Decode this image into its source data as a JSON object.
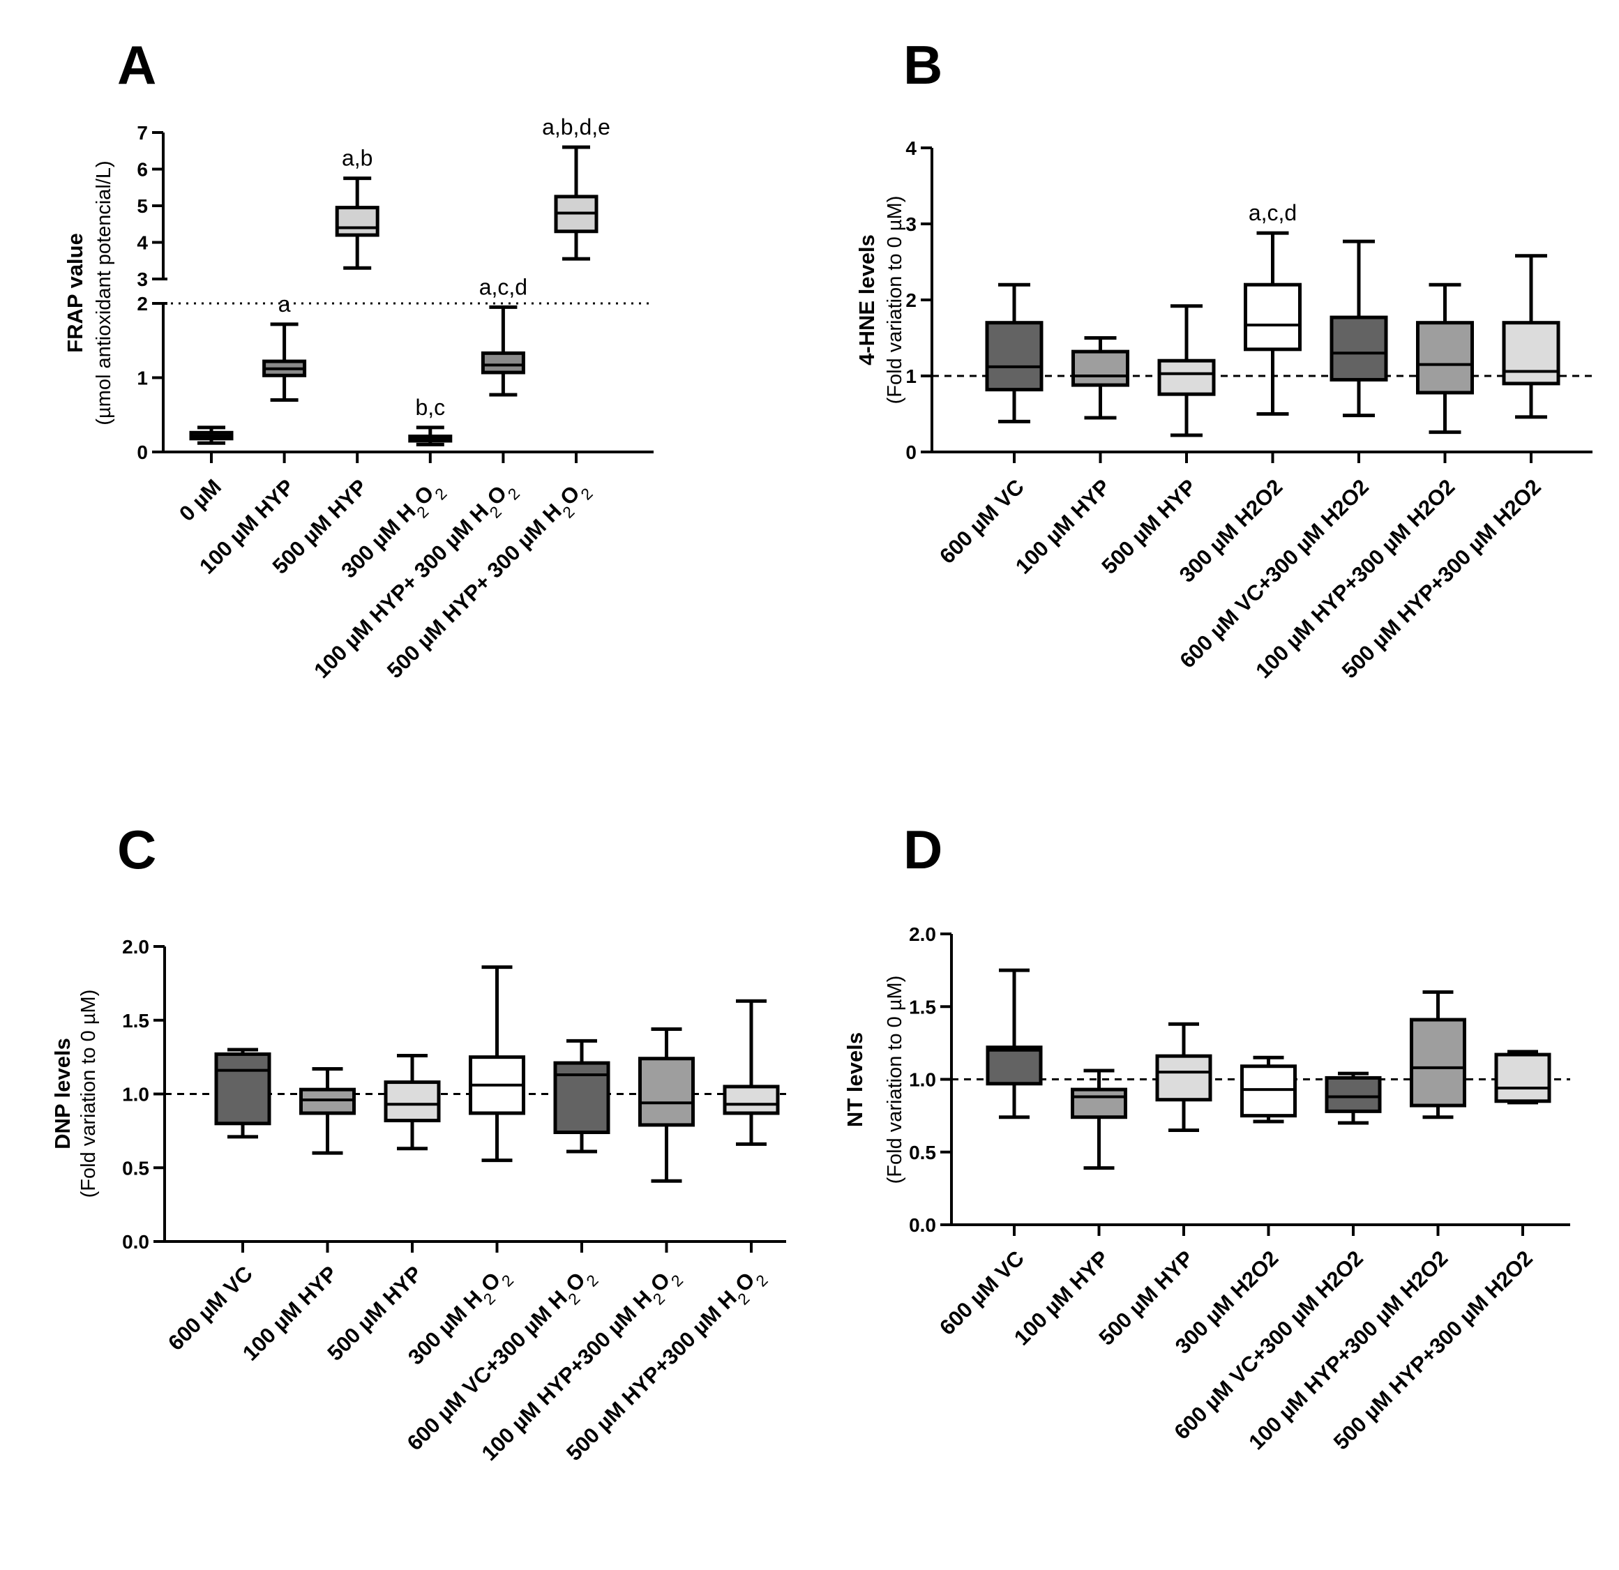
{
  "chart_data": [
    {
      "panel": "A",
      "type": "box",
      "ylabel": "FRAP value",
      "ylabel_sub": "(µmol antioxidant potencial/L)",
      "ylim": [
        0,
        7
      ],
      "axis_break": [
        2,
        3
      ],
      "yticks": [
        "0",
        "1",
        "2",
        "3",
        "4",
        "5",
        "6",
        "7"
      ],
      "reference_line": 2,
      "categories": [
        {
          "pre": "0 µM",
          "sub": "",
          "post": ""
        },
        {
          "pre": "100 µM HYP",
          "sub": "",
          "post": ""
        },
        {
          "pre": "500 µM HYP",
          "sub": "",
          "post": ""
        },
        {
          "pre": "300 µM H",
          "sub": "2",
          "post": "O",
          "sub2": "2"
        },
        {
          "pre": "100 µM HYP+ 300 µM H",
          "sub": "2",
          "post": "O",
          "sub2": "2"
        },
        {
          "pre": "500 µM HYP+ 300 µM H",
          "sub": "2",
          "post": "O",
          "sub2": "2"
        }
      ],
      "boxes": [
        {
          "min": 0.12,
          "q1": 0.18,
          "median": 0.22,
          "q3": 0.26,
          "max": 0.33,
          "fill": "#6b6b6b",
          "label": ""
        },
        {
          "min": 0.7,
          "q1": 1.03,
          "median": 1.12,
          "q3": 1.22,
          "max": 1.72,
          "fill": "#8a8a8a",
          "label": "a"
        },
        {
          "min": 3.3,
          "q1": 4.2,
          "median": 4.4,
          "q3": 4.95,
          "max": 5.75,
          "fill": "#d2d2d2",
          "label": "a,b"
        },
        {
          "min": 0.1,
          "q1": 0.15,
          "median": 0.19,
          "q3": 0.21,
          "max": 0.33,
          "fill": "#ffffff",
          "label": "b,c"
        },
        {
          "min": 0.77,
          "q1": 1.07,
          "median": 1.17,
          "q3": 1.33,
          "max": 1.95,
          "fill": "#8a8a8a",
          "label": "a,c,d"
        },
        {
          "min": 3.55,
          "q1": 4.3,
          "median": 4.8,
          "q3": 5.25,
          "max": 6.6,
          "fill": "#d2d2d2",
          "label": "a,b,d,e"
        }
      ]
    },
    {
      "panel": "B",
      "type": "box",
      "ylabel": "4-HNE levels",
      "ylabel_sub": "(Fold variation to 0 µM)",
      "ylim": [
        0,
        4
      ],
      "yticks": [
        "0",
        "1",
        "2",
        "3",
        "4"
      ],
      "reference_line": 1,
      "categories": [
        {
          "pre": "600 µM VC",
          "sub": "",
          "post": ""
        },
        {
          "pre": "100 µM HYP",
          "sub": "",
          "post": ""
        },
        {
          "pre": "500 µM HYP",
          "sub": "",
          "post": ""
        },
        {
          "pre": "300 µM H2O2",
          "sub": "",
          "post": ""
        },
        {
          "pre": "600 µM VC+300 µM H2O2",
          "sub": "",
          "post": ""
        },
        {
          "pre": "100 µM HYP+300 µM H2O2",
          "sub": "",
          "post": ""
        },
        {
          "pre": "500 µM HYP+300 µM H2O2",
          "sub": "",
          "post": ""
        }
      ],
      "boxes": [
        {
          "min": 0.4,
          "q1": 0.82,
          "median": 1.12,
          "q3": 1.7,
          "max": 2.2,
          "fill": "#636363",
          "label": ""
        },
        {
          "min": 0.45,
          "q1": 0.88,
          "median": 1.0,
          "q3": 1.32,
          "max": 1.5,
          "fill": "#9e9e9e",
          "label": ""
        },
        {
          "min": 0.22,
          "q1": 0.76,
          "median": 1.03,
          "q3": 1.2,
          "max": 1.92,
          "fill": "#dcdcdc",
          "label": ""
        },
        {
          "min": 0.5,
          "q1": 1.35,
          "median": 1.67,
          "q3": 2.2,
          "max": 2.88,
          "fill": "#ffffff",
          "label": "a,c,d"
        },
        {
          "min": 0.48,
          "q1": 0.95,
          "median": 1.3,
          "q3": 1.77,
          "max": 2.77,
          "fill": "#636363",
          "label": ""
        },
        {
          "min": 0.26,
          "q1": 0.78,
          "median": 1.15,
          "q3": 1.7,
          "max": 2.2,
          "fill": "#9e9e9e",
          "label": ""
        },
        {
          "min": 0.46,
          "q1": 0.9,
          "median": 1.06,
          "q3": 1.7,
          "max": 2.58,
          "fill": "#dcdcdc",
          "label": ""
        }
      ]
    },
    {
      "panel": "C",
      "type": "box",
      "ylabel": "DNP levels",
      "ylabel_sub": "(Fold variation to 0 µM)",
      "ylim": [
        0,
        2
      ],
      "yticks": [
        "0.0",
        "0.5",
        "1.0",
        "1.5",
        "2.0"
      ],
      "reference_line": 1,
      "categories": [
        {
          "pre": "600 µM VC",
          "sub": "",
          "post": ""
        },
        {
          "pre": "100 µM HYP",
          "sub": "",
          "post": ""
        },
        {
          "pre": "500 µM HYP",
          "sub": "",
          "post": ""
        },
        {
          "pre": "300 µM H",
          "sub": "2",
          "post": "O",
          "sub2": "2"
        },
        {
          "pre": "600 µM VC+300 µM H",
          "sub": "2",
          "post": "O",
          "sub2": "2"
        },
        {
          "pre": "100 µM HYP+300 µM H",
          "sub": "2",
          "post": "O",
          "sub2": "2"
        },
        {
          "pre": "500 µM HYP+300 µM H",
          "sub": "2",
          "post": "O",
          "sub2": "2"
        }
      ],
      "boxes": [
        {
          "min": 0.71,
          "q1": 0.8,
          "median": 1.16,
          "q3": 1.27,
          "max": 1.3,
          "fill": "#636363",
          "label": ""
        },
        {
          "min": 0.6,
          "q1": 0.87,
          "median": 0.96,
          "q3": 1.03,
          "max": 1.17,
          "fill": "#9e9e9e",
          "label": ""
        },
        {
          "min": 0.63,
          "q1": 0.82,
          "median": 0.93,
          "q3": 1.08,
          "max": 1.26,
          "fill": "#dcdcdc",
          "label": ""
        },
        {
          "min": 0.55,
          "q1": 0.87,
          "median": 1.06,
          "q3": 1.25,
          "max": 1.86,
          "fill": "#ffffff",
          "label": ""
        },
        {
          "min": 0.61,
          "q1": 0.74,
          "median": 1.13,
          "q3": 1.21,
          "max": 1.36,
          "fill": "#636363",
          "label": ""
        },
        {
          "min": 0.41,
          "q1": 0.79,
          "median": 0.94,
          "q3": 1.24,
          "max": 1.44,
          "fill": "#9e9e9e",
          "label": ""
        },
        {
          "min": 0.66,
          "q1": 0.87,
          "median": 0.93,
          "q3": 1.05,
          "max": 1.63,
          "fill": "#dcdcdc",
          "label": ""
        }
      ]
    },
    {
      "panel": "D",
      "type": "box",
      "ylabel": "NT levels",
      "ylabel_sub": "(Fold variation to 0 µM)",
      "ylim": [
        0,
        2
      ],
      "yticks": [
        "0.0",
        "0.5",
        "1.0",
        "1.5",
        "2.0"
      ],
      "reference_line": 1,
      "categories": [
        {
          "pre": "600 µM VC",
          "sub": "",
          "post": ""
        },
        {
          "pre": "100 µM HYP",
          "sub": "",
          "post": ""
        },
        {
          "pre": "500 µM HYP",
          "sub": "",
          "post": ""
        },
        {
          "pre": "300 µM H2O2",
          "sub": "",
          "post": ""
        },
        {
          "pre": "600 µM VC+300 µM H2O2",
          "sub": "",
          "post": ""
        },
        {
          "pre": "100 µM HYP+300 µM H2O2",
          "sub": "",
          "post": ""
        },
        {
          "pre": "500 µM HYP+300 µM H2O2",
          "sub": "",
          "post": ""
        }
      ],
      "boxes": [
        {
          "min": 0.74,
          "q1": 0.97,
          "median": 1.2,
          "q3": 1.22,
          "max": 1.75,
          "fill": "#636363",
          "label": ""
        },
        {
          "min": 0.39,
          "q1": 0.74,
          "median": 0.88,
          "q3": 0.93,
          "max": 1.06,
          "fill": "#9e9e9e",
          "label": ""
        },
        {
          "min": 0.65,
          "q1": 0.86,
          "median": 1.05,
          "q3": 1.16,
          "max": 1.38,
          "fill": "#dcdcdc",
          "label": ""
        },
        {
          "min": 0.71,
          "q1": 0.75,
          "median": 0.93,
          "q3": 1.09,
          "max": 1.15,
          "fill": "#ffffff",
          "label": ""
        },
        {
          "min": 0.7,
          "q1": 0.78,
          "median": 0.88,
          "q3": 1.01,
          "max": 1.04,
          "fill": "#636363",
          "label": ""
        },
        {
          "min": 0.74,
          "q1": 0.82,
          "median": 1.08,
          "q3": 1.41,
          "max": 1.6,
          "fill": "#9e9e9e",
          "label": ""
        },
        {
          "min": 0.84,
          "q1": 0.85,
          "median": 0.94,
          "q3": 1.17,
          "max": 1.19,
          "fill": "#dcdcdc",
          "label": ""
        }
      ]
    }
  ]
}
